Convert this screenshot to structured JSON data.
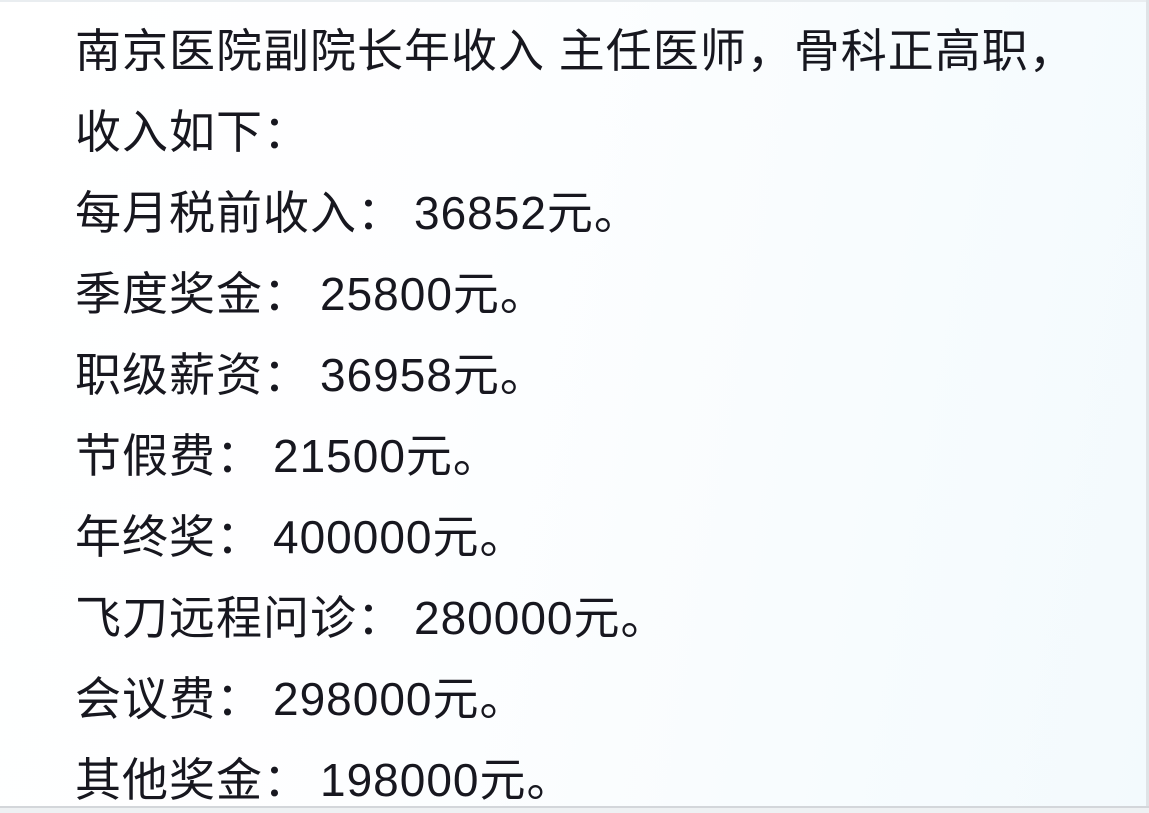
{
  "page": {
    "background_left": "#ffffff",
    "background_right": "#f3fafd",
    "text_color": "#17171f"
  },
  "document": {
    "intro_lines": [
      "南京医院副院长年收入 主任医师，骨科正高职，",
      "收入如下："
    ],
    "items": [
      {
        "label": "每月税前收入：",
        "amount": "36852元。"
      },
      {
        "label": "季度奖金：",
        "amount": "25800元。"
      },
      {
        "label": "职级薪资：",
        "amount": "36958元。"
      },
      {
        "label": "节假费：",
        "amount": "21500元。"
      },
      {
        "label": "年终奖：",
        "amount": "400000元。"
      },
      {
        "label": "飞刀远程问诊：",
        "amount": "280000元。"
      },
      {
        "label": "会议费：",
        "amount": "298000元。"
      },
      {
        "label": "其他奖金：",
        "amount": "198000元。"
      }
    ]
  }
}
